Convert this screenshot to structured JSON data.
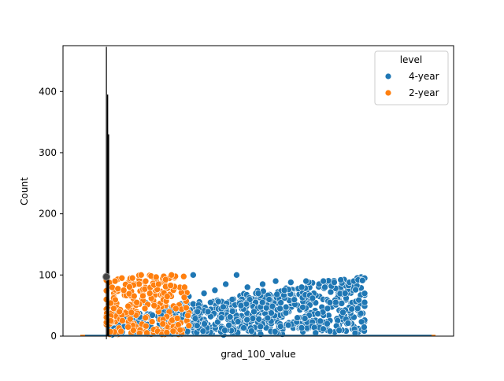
{
  "chart_data": {
    "type": "scatter",
    "xlabel": "grad_100_value",
    "ylabel": "Count",
    "ylim": [
      0,
      475
    ],
    "y_ticks": [
      0,
      100,
      200,
      300,
      400
    ],
    "x_ticks": [
      ""
    ],
    "legend": {
      "title": "level",
      "placement": "top-right",
      "entries": [
        {
          "label": "4-year",
          "color": "#1f77b4"
        },
        {
          "label": "2-year",
          "color": "#ff7f0e"
        }
      ]
    },
    "series": [
      {
        "name": "4-year",
        "color": "#1f77b4",
        "points_sample": [
          [
            0.05,
            10
          ],
          [
            0.12,
            35
          ],
          [
            0.18,
            55
          ],
          [
            0.22,
            72
          ],
          [
            0.27,
            60
          ],
          [
            0.3,
            80
          ],
          [
            0.34,
            45
          ],
          [
            0.38,
            65
          ],
          [
            0.4,
            100
          ],
          [
            0.42,
            40
          ],
          [
            0.45,
            70
          ],
          [
            0.48,
            55
          ],
          [
            0.5,
            75
          ],
          [
            0.53,
            30
          ],
          [
            0.55,
            85
          ],
          [
            0.58,
            60
          ],
          [
            0.6,
            100
          ],
          [
            0.62,
            50
          ],
          [
            0.65,
            80
          ],
          [
            0.68,
            40
          ],
          [
            0.7,
            70
          ],
          [
            0.72,
            85
          ],
          [
            0.75,
            60
          ],
          [
            0.78,
            90
          ],
          [
            0.8,
            45
          ],
          [
            0.82,
            75
          ],
          [
            0.85,
            88
          ],
          [
            0.88,
            30
          ],
          [
            0.9,
            80
          ],
          [
            0.92,
            90
          ],
          [
            0.95,
            62
          ],
          [
            0.98,
            85
          ],
          [
            1.0,
            90
          ],
          [
            1.03,
            55
          ],
          [
            1.05,
            88
          ],
          [
            1.08,
            92
          ],
          [
            1.1,
            70
          ],
          [
            1.12,
            88
          ],
          [
            1.14,
            90
          ],
          [
            1.16,
            92
          ],
          [
            1.18,
            91
          ]
        ]
      },
      {
        "name": "2-year",
        "color": "#ff7f0e",
        "points_sample": [
          [
            0.0,
            60
          ],
          [
            0.02,
            25
          ],
          [
            0.04,
            90
          ],
          [
            0.06,
            40
          ],
          [
            0.08,
            75
          ],
          [
            0.1,
            15
          ],
          [
            0.12,
            95
          ],
          [
            0.14,
            55
          ],
          [
            0.16,
            100
          ],
          [
            0.18,
            30
          ],
          [
            0.2,
            70
          ],
          [
            0.22,
            50
          ],
          [
            0.24,
            85
          ],
          [
            0.26,
            20
          ],
          [
            0.28,
            65
          ],
          [
            0.3,
            100
          ],
          [
            0.32,
            45
          ],
          [
            0.34,
            10
          ],
          [
            0.36,
            80
          ]
        ]
      },
      {
        "name": "",
        "color": "#000000",
        "note_type": "vertical spike line at x≈0 with ECDF-like overlay",
        "max_y": 473
      }
    ]
  }
}
